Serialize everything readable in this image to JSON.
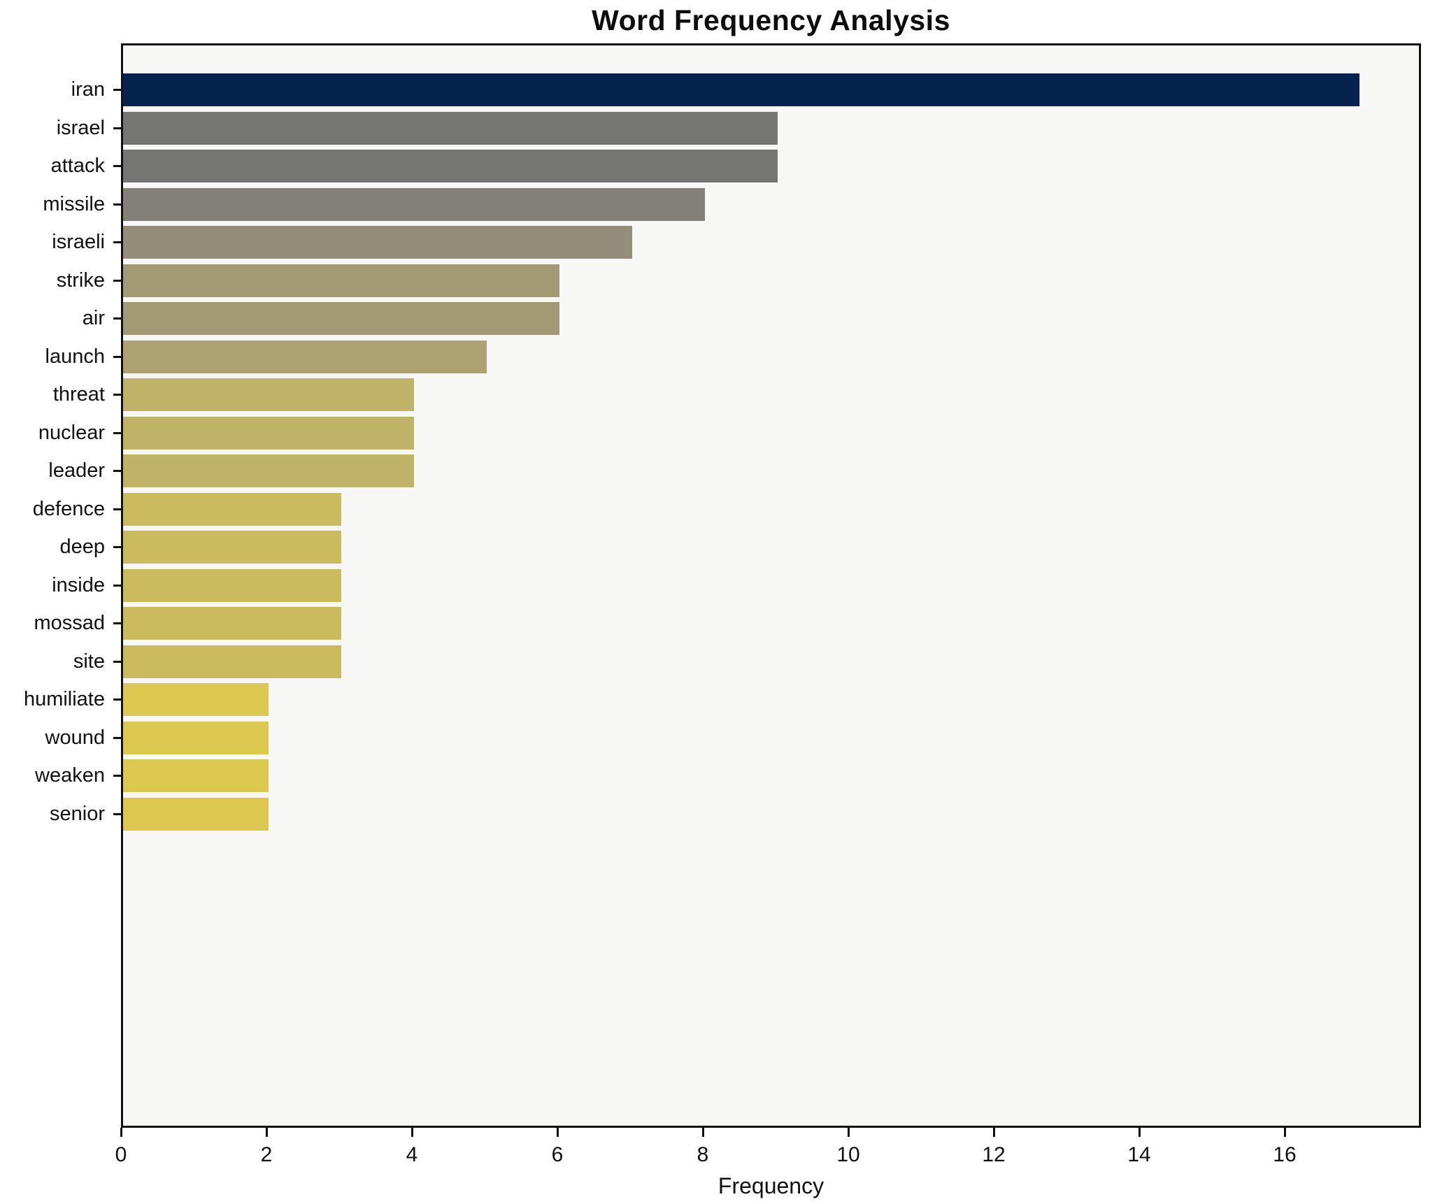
{
  "chart_data": {
    "type": "bar",
    "orientation": "horizontal",
    "title": "Word Frequency Analysis",
    "xlabel": "Frequency",
    "ylabel": "",
    "categories": [
      "iran",
      "israel",
      "attack",
      "missile",
      "israeli",
      "strike",
      "air",
      "launch",
      "threat",
      "nuclear",
      "leader",
      "defence",
      "deep",
      "inside",
      "mossad",
      "site",
      "humiliate",
      "wound",
      "weaken",
      "senior"
    ],
    "values": [
      17,
      9,
      9,
      8,
      7,
      6,
      6,
      5,
      4,
      4,
      4,
      3,
      3,
      3,
      3,
      3,
      2,
      2,
      2,
      2
    ],
    "bar_colors": [
      "#05234e",
      "#757574",
      "#757574",
      "#83807a",
      "#948d79",
      "#a19a75",
      "#a19a75",
      "#aea273",
      "#c0b266",
      "#c0b266",
      "#c0b266",
      "#cabc5e",
      "#cabc5e",
      "#cabc5e",
      "#cabc5e",
      "#cabc5e",
      "#dcc851",
      "#dcc851",
      "#dcc851",
      "#dcc851"
    ],
    "xlim": [
      0,
      17.875
    ],
    "xticks": [
      0,
      2,
      4,
      6,
      8,
      10,
      12,
      14,
      16
    ],
    "grid": false,
    "legend_position": "none",
    "plot_background": "#f7f7f5",
    "figure_background": "#ffffff",
    "spine_color": "#111111"
  }
}
